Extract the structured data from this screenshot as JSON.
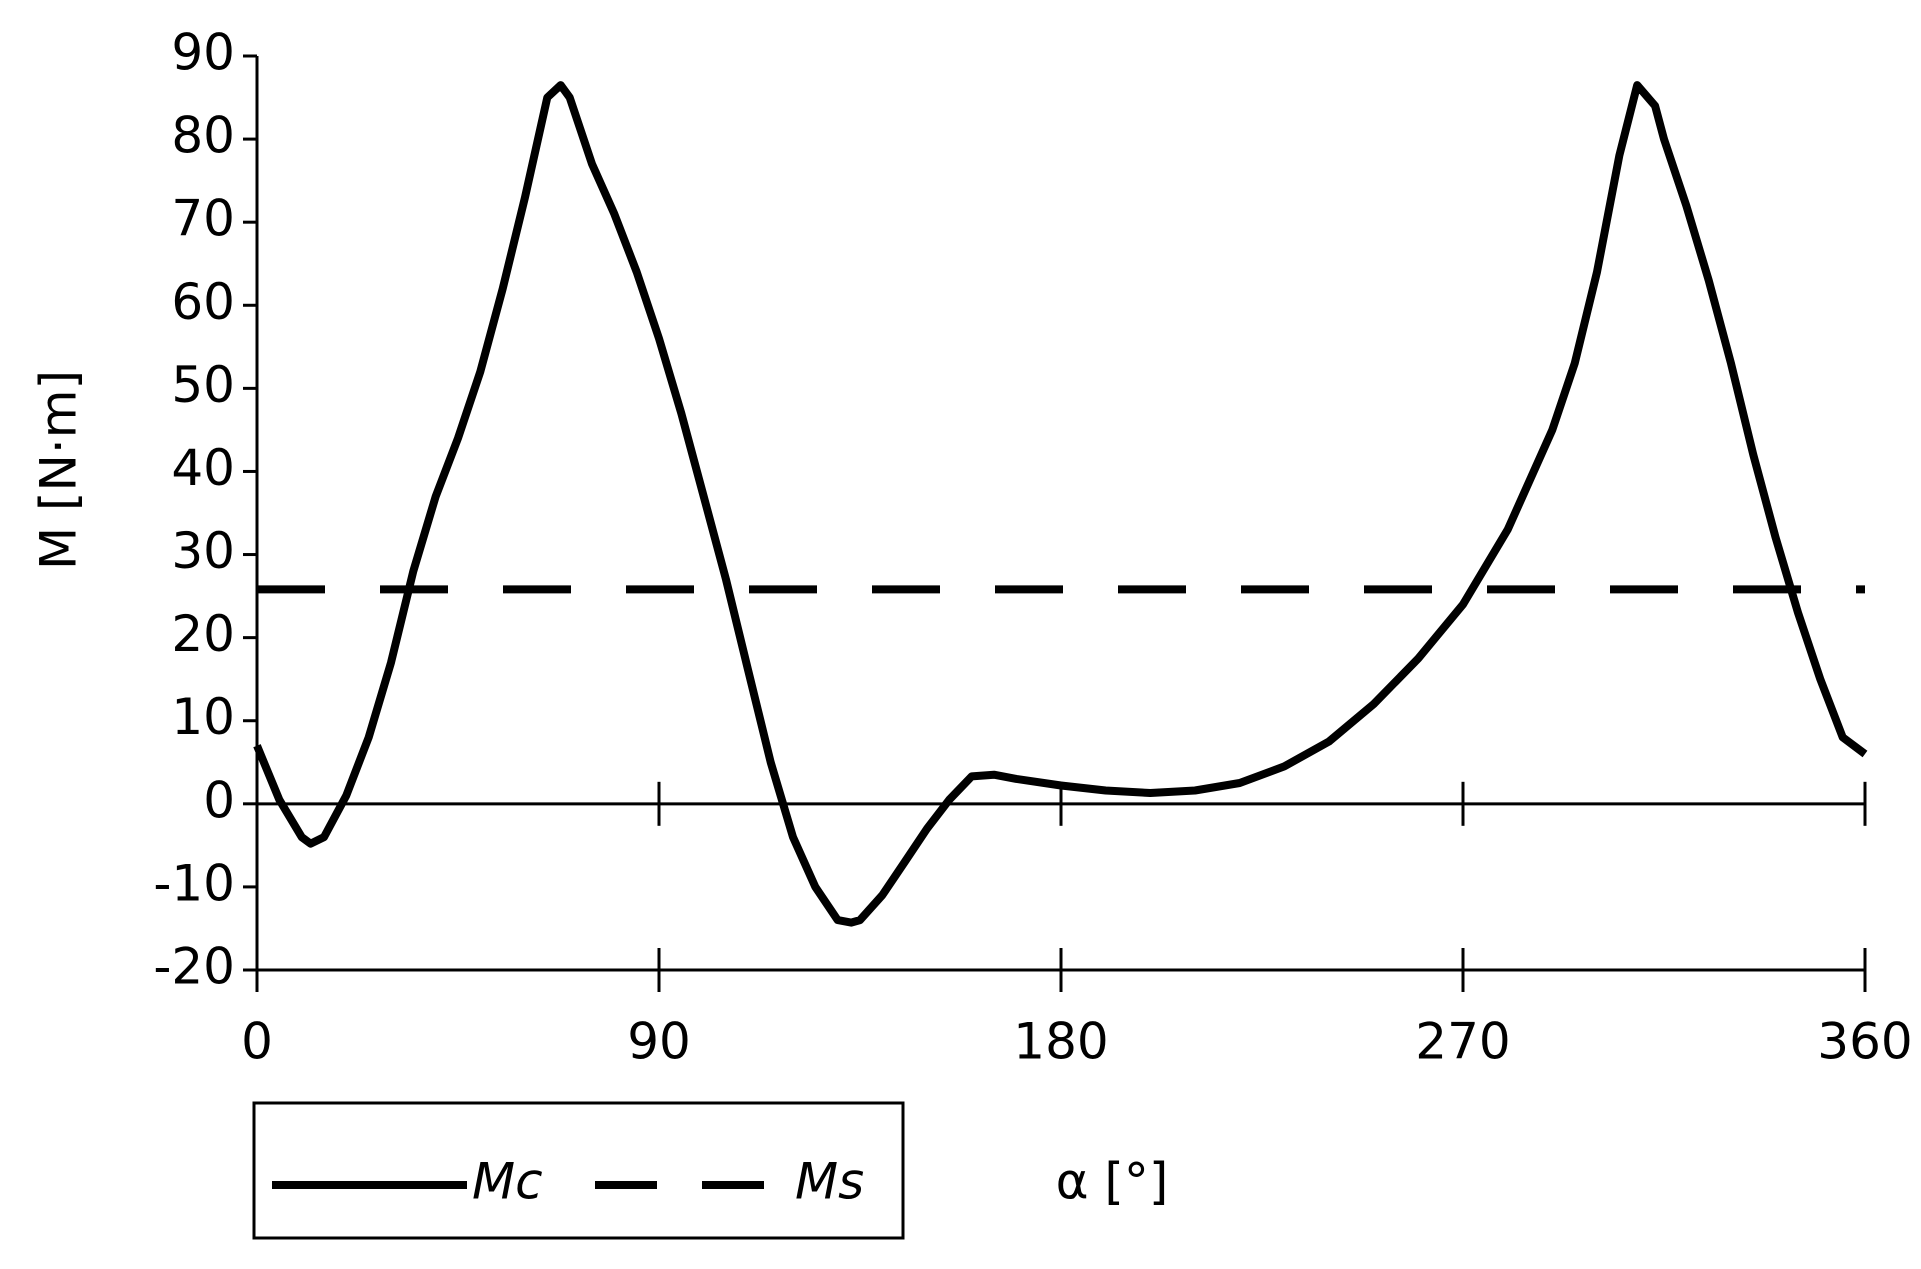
{
  "chart_data": {
    "type": "line",
    "x_label": "α [°]",
    "y_label": "M [N·m]",
    "xlim": [
      0,
      360
    ],
    "xticks": [
      0,
      90,
      180,
      270,
      360
    ],
    "ylim": [
      -20,
      90
    ],
    "yticks": [
      -20,
      -10,
      0,
      10,
      20,
      30,
      40,
      50,
      60,
      70,
      80,
      90
    ],
    "grid": false,
    "series": [
      {
        "name": "Mc",
        "color": "#000000",
        "dash": "solid",
        "x": [
          0,
          5,
          10,
          12,
          15,
          20,
          25,
          30,
          35,
          40,
          45,
          50,
          55,
          60,
          65,
          68,
          70,
          75,
          80,
          85,
          90,
          95,
          100,
          105,
          110,
          115,
          120,
          125,
          130,
          133,
          135,
          140,
          145,
          150,
          155,
          160,
          165,
          170,
          180,
          190,
          200,
          210,
          220,
          230,
          240,
          250,
          260,
          270,
          280,
          290,
          295,
          300,
          305,
          309,
          313,
          315,
          320,
          325,
          330,
          335,
          340,
          345,
          350,
          355,
          360
        ],
        "values": [
          7,
          0.5,
          -4,
          -4.8,
          -4,
          1,
          8,
          17,
          28,
          37,
          44,
          52,
          62,
          73,
          85,
          86.5,
          85,
          77,
          71,
          64,
          56,
          47,
          37,
          27,
          16,
          5,
          -4,
          -10,
          -14,
          -14.3,
          -14,
          -11,
          -7,
          -3,
          0.5,
          3.3,
          3.5,
          3,
          2.2,
          1.6,
          1.3,
          1.6,
          2.5,
          4.5,
          7.5,
          12,
          17.5,
          24,
          33,
          45,
          53,
          64,
          78,
          86.5,
          84,
          80,
          72,
          63,
          53,
          42,
          32,
          23,
          15,
          8,
          6
        ]
      },
      {
        "name": "Ms",
        "color": "#000000",
        "dash": "dashed",
        "x": [
          0,
          360
        ],
        "values": [
          25.8,
          25.8
        ]
      }
    ]
  }
}
